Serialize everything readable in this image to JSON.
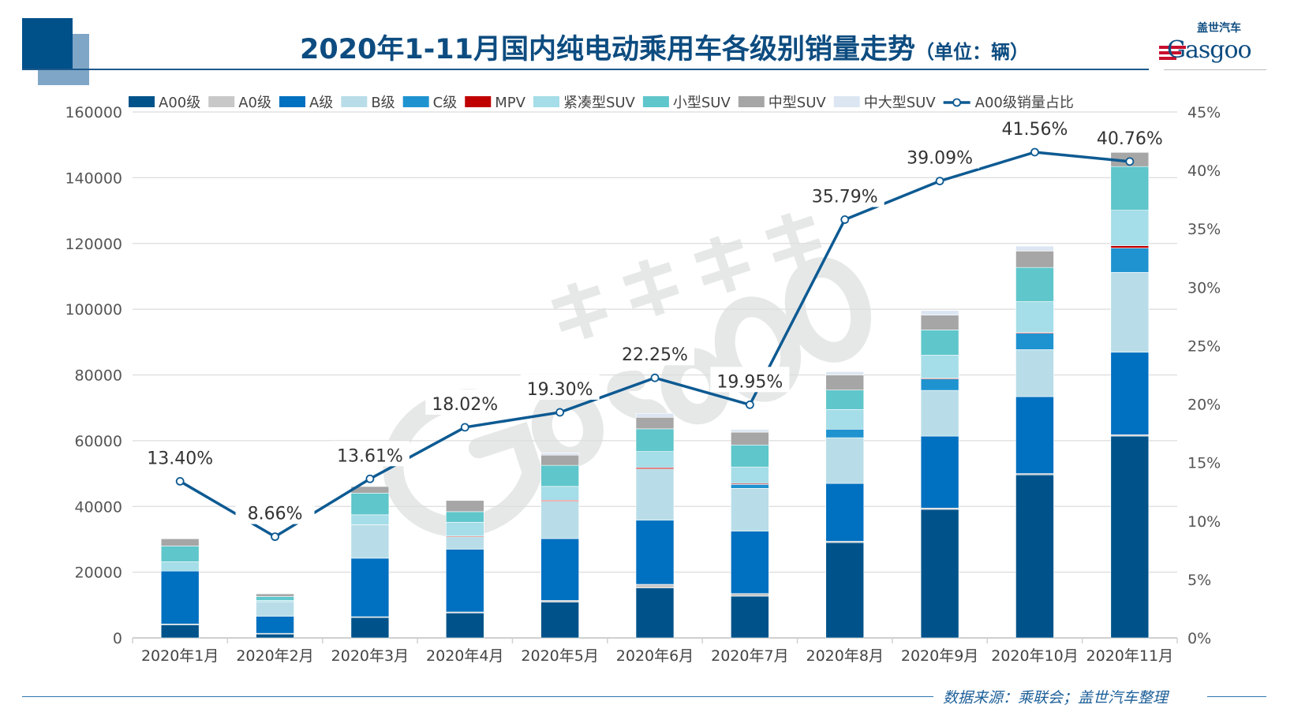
{
  "title": "2020年1-11月国内纯电动乘用车各级别销量走势",
  "title_unit": "（单位：辆）",
  "logo": {
    "cn": "盖世汽车",
    "en": "Gasgoo"
  },
  "watermark": {
    "cn": "盖世汽车",
    "en": "Gasgoo"
  },
  "footer": "数据来源：乘联会；盖世汽车整理",
  "chart_data": {
    "type": "bar",
    "stacked": true,
    "categories": [
      "2020年1月",
      "2020年2月",
      "2020年3月",
      "2020年4月",
      "2020年5月",
      "2020年6月",
      "2020年7月",
      "2020年8月",
      "2020年9月",
      "2020年10月",
      "2020年11月"
    ],
    "ylim": [
      0,
      160000
    ],
    "yticks": [
      "0",
      "20000",
      "40000",
      "60000",
      "80000",
      "100000",
      "120000",
      "140000",
      "160000"
    ],
    "y2lim": [
      0,
      45
    ],
    "y2ticks": [
      "0%",
      "5%",
      "10%",
      "15%",
      "20%",
      "25%",
      "30%",
      "35%",
      "40%",
      "45%"
    ],
    "grid": true,
    "legend_position": "top",
    "series": [
      {
        "name": "A00级",
        "color": "#00538a",
        "values": [
          4000,
          1200,
          6200,
          7600,
          10900,
          15200,
          12700,
          29000,
          39100,
          49600,
          61400
        ]
      },
      {
        "name": "A0级",
        "color": "#c8c8c8",
        "values": [
          250,
          200,
          250,
          300,
          500,
          1100,
          800,
          400,
          400,
          400,
          400
        ]
      },
      {
        "name": "A级",
        "color": "#0070c0",
        "values": [
          16100,
          5200,
          17800,
          19100,
          18800,
          19500,
          19000,
          17600,
          21900,
          23400,
          25100
        ]
      },
      {
        "name": "B级",
        "color": "#b8dde8",
        "values": [
          0,
          4400,
          10200,
          3800,
          11400,
          15600,
          13000,
          13900,
          13900,
          14300,
          24300
        ]
      },
      {
        "name": "C级",
        "color": "#1f93d0",
        "values": [
          0,
          0,
          0,
          0,
          0,
          0,
          1200,
          2600,
          3500,
          5000,
          7400
        ]
      },
      {
        "name": "MPV",
        "color": "#c00000",
        "values": [
          0,
          0,
          0,
          200,
          300,
          400,
          300,
          0,
          200,
          200,
          700
        ]
      },
      {
        "name": "紧凑型SUV",
        "color": "#a5dde8",
        "values": [
          2800,
          400,
          3000,
          4200,
          4200,
          4900,
          5000,
          6000,
          7000,
          9400,
          10800
        ]
      },
      {
        "name": "小型SUV",
        "color": "#5fc6cb",
        "values": [
          4800,
          1200,
          6600,
          3200,
          6400,
          6900,
          6700,
          5900,
          7700,
          10400,
          13300
        ]
      },
      {
        "name": "中型SUV",
        "color": "#a6a6a6",
        "values": [
          2200,
          800,
          2000,
          3400,
          3100,
          3500,
          3900,
          4600,
          4500,
          5000,
          4300
        ]
      },
      {
        "name": "中大型SUV",
        "color": "#dce6f2",
        "values": [
          0,
          0,
          0,
          0,
          600,
          1200,
          800,
          1000,
          1400,
          1500,
          0
        ]
      }
    ],
    "line": {
      "name": "A00级销量占比",
      "color": "#0d5a92",
      "axis": "right",
      "values": [
        13.4,
        8.66,
        13.61,
        18.02,
        19.3,
        22.25,
        19.95,
        35.79,
        39.09,
        41.56,
        40.76
      ],
      "labels": [
        "13.40%",
        "8.66%",
        "13.61%",
        "18.02%",
        "19.30%",
        "22.25%",
        "19.95%",
        "35.79%",
        "39.09%",
        "41.56%",
        "40.76%"
      ]
    }
  }
}
